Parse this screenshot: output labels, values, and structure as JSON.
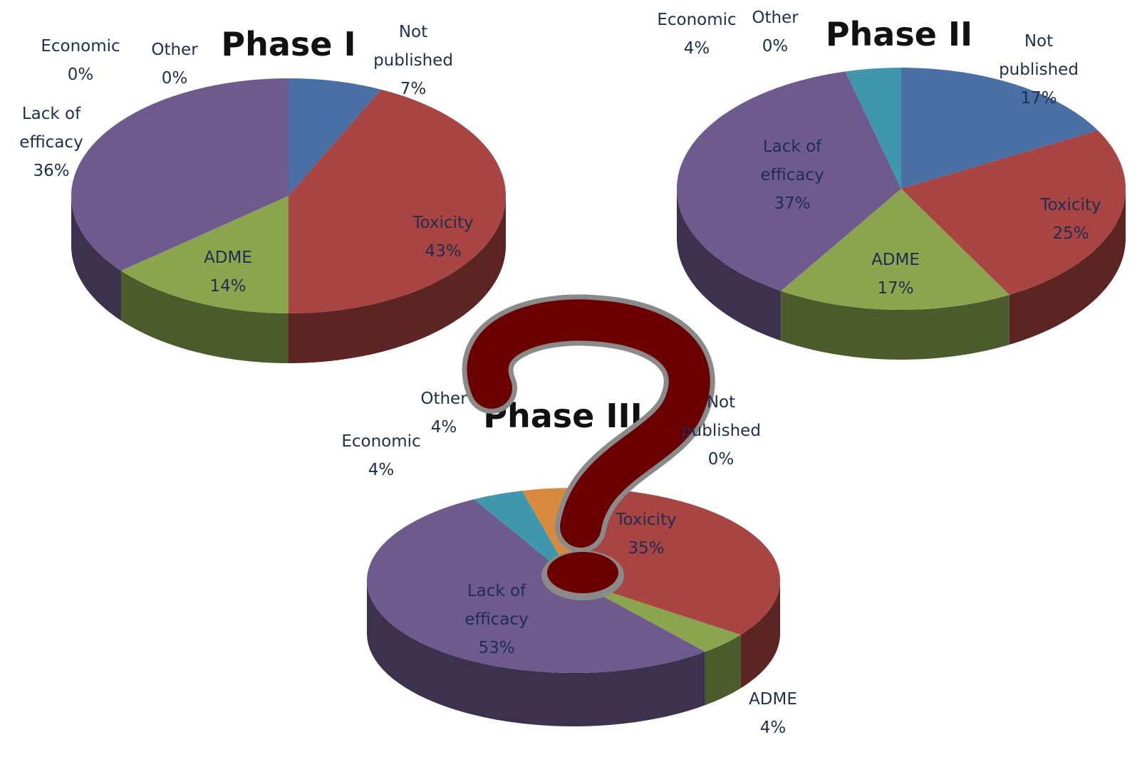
{
  "chart_data": [
    {
      "type": "pie",
      "title": "Phase I",
      "categories": [
        "Not published",
        "Toxicity",
        "ADME",
        "Lack of efficacy",
        "Economic",
        "Other"
      ],
      "values": [
        7,
        43,
        14,
        36,
        0,
        0
      ],
      "value_labels": [
        "7%",
        "43%",
        "14%",
        "36%",
        "0%",
        "0%"
      ],
      "colors": [
        "#4a6fa5",
        "#a84442",
        "#8aa54e",
        "#6f5a8e",
        "#3e97ad",
        "#d88a3e"
      ]
    },
    {
      "type": "pie",
      "title": "Phase II",
      "categories": [
        "Not published",
        "Toxicity",
        "ADME",
        "Lack of efficacy",
        "Economic",
        "Other"
      ],
      "values": [
        17,
        25,
        17,
        37,
        4,
        0
      ],
      "value_labels": [
        "17%",
        "25%",
        "17%",
        "37%",
        "4%",
        "0%"
      ],
      "colors": [
        "#4a6fa5",
        "#a84442",
        "#8aa54e",
        "#6f5a8e",
        "#3e97ad",
        "#d88a3e"
      ]
    },
    {
      "type": "pie",
      "title": "Phase III",
      "categories": [
        "Not published",
        "Toxicity",
        "ADME",
        "Lack of efficacy",
        "Economic",
        "Other"
      ],
      "values": [
        0,
        35,
        4,
        53,
        4,
        4
      ],
      "value_labels": [
        "0%",
        "35%",
        "4%",
        "53%",
        "4%",
        "4%"
      ],
      "colors": [
        "#4a6fa5",
        "#a84442",
        "#8aa54e",
        "#6f5a8e",
        "#3e97ad",
        "#d88a3e"
      ]
    }
  ]
}
